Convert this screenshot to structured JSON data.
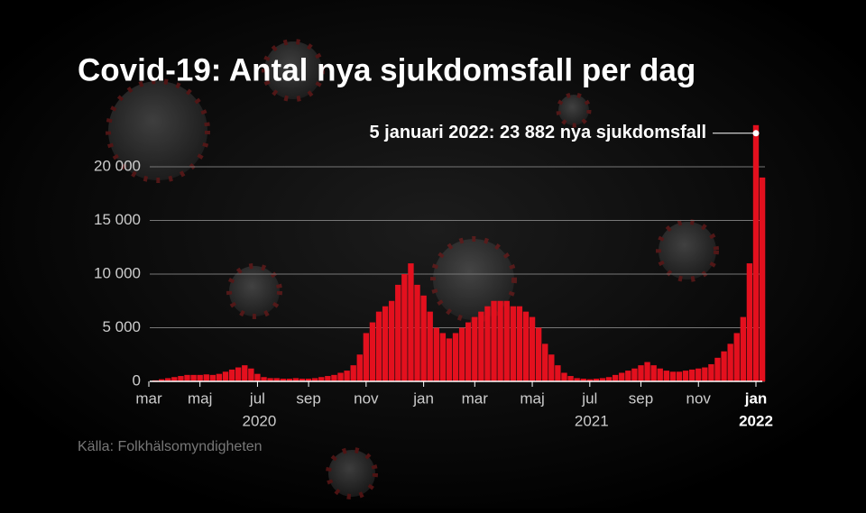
{
  "chart_data": {
    "type": "bar",
    "title": "Covid-19: Antal nya sjukdomsfall per dag",
    "annotation": "5 januari 2022: 23 882 nya sjukdomsfall",
    "source": "Källa: Folkhälsomyndigheten",
    "color": "#e3101e",
    "grid": true,
    "ylim": [
      0,
      24000
    ],
    "yticks": [
      0,
      {
        "value": 5000,
        "label": "5 000"
      },
      {
        "value": 10000,
        "label": "10 000"
      },
      {
        "value": 15000,
        "label": "15 000"
      },
      {
        "value": 20000,
        "label": "20 000"
      }
    ],
    "categories": [
      "mar",
      null,
      null,
      null,
      null,
      null,
      null,
      null,
      "maj",
      null,
      null,
      null,
      null,
      null,
      null,
      null,
      null,
      "jul",
      null,
      null,
      null,
      null,
      null,
      null,
      null,
      "sep",
      null,
      null,
      null,
      null,
      null,
      null,
      null,
      null,
      "nov",
      null,
      null,
      null,
      null,
      null,
      null,
      null,
      null,
      "jan",
      null,
      null,
      null,
      null,
      null,
      null,
      null,
      "mar",
      null,
      null,
      null,
      null,
      null,
      null,
      null,
      null,
      "maj",
      null,
      null,
      null,
      null,
      null,
      null,
      null,
      null,
      "jul",
      null,
      null,
      null,
      null,
      null,
      null,
      null,
      "sep",
      null,
      null,
      null,
      null,
      null,
      null,
      null,
      null,
      "nov",
      null,
      null,
      null,
      null,
      null,
      null,
      null,
      null,
      "jan",
      null
    ],
    "years": [
      null,
      null,
      null,
      null,
      null,
      null,
      null,
      null,
      null,
      null,
      null,
      null,
      null,
      null,
      null,
      null,
      null,
      "2020",
      null,
      null,
      null,
      null,
      null,
      null,
      null,
      null,
      null,
      null,
      null,
      null,
      null,
      null,
      null,
      null,
      null,
      null,
      null,
      null,
      null,
      null,
      null,
      null,
      null,
      null,
      null,
      null,
      null,
      null,
      null,
      null,
      null,
      null,
      null,
      null,
      null,
      null,
      null,
      null,
      null,
      null,
      null,
      null,
      null,
      null,
      null,
      null,
      null,
      null,
      null,
      "2021",
      null,
      null,
      null,
      null,
      null,
      null,
      null,
      null,
      null,
      null,
      null,
      null,
      null,
      null,
      null,
      null,
      null,
      null,
      null,
      null,
      null,
      null,
      null,
      null,
      null,
      "2022",
      null
    ],
    "values": [
      0,
      100,
      200,
      300,
      400,
      500,
      600,
      600,
      600,
      650,
      600,
      700,
      900,
      1100,
      1300,
      1500,
      1200,
      700,
      400,
      300,
      300,
      250,
      250,
      300,
      250,
      250,
      300,
      400,
      500,
      600,
      800,
      1000,
      1500,
      2500,
      4500,
      5500,
      6500,
      7000,
      7500,
      9000,
      10000,
      11000,
      9000,
      8000,
      6500,
      5000,
      4500,
      4000,
      4500,
      5000,
      5500,
      6000,
      6500,
      7000,
      7500,
      7500,
      7500,
      7000,
      7000,
      6500,
      6000,
      5000,
      3500,
      2500,
      1500,
      800,
      500,
      300,
      250,
      200,
      250,
      300,
      400,
      600,
      800,
      1000,
      1200,
      1500,
      1800,
      1500,
      1200,
      1000,
      900,
      900,
      1000,
      1100,
      1200,
      1300,
      1600,
      2200,
      2800,
      3500,
      4500,
      6000,
      11000,
      23882,
      19000
    ]
  }
}
